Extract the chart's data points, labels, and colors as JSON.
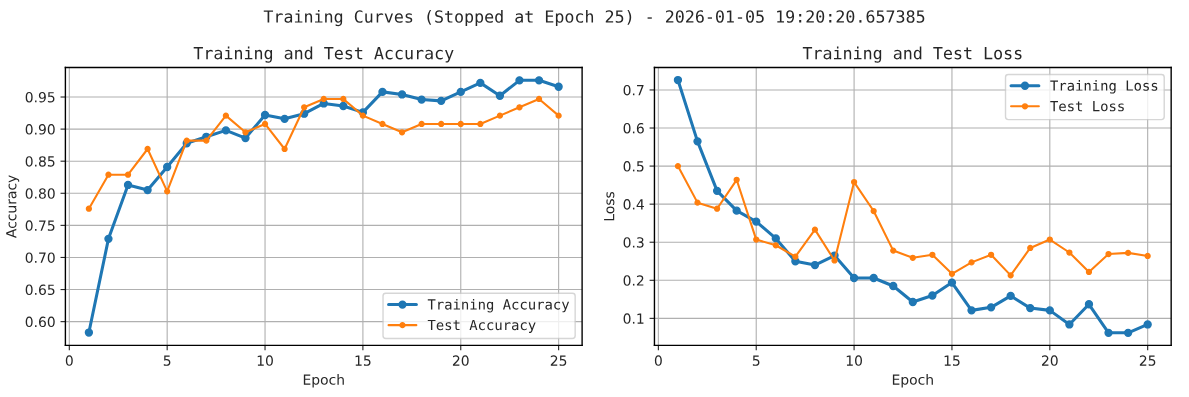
{
  "chart_data": [
    {
      "type": "line",
      "title": "Training and Test Accuracy",
      "xlabel": "Epoch",
      "ylabel": "Accuracy",
      "annotations": [
        "Training Curves (Stopped at Epoch 25) - 2026-01-05 19:20:20.657385"
      ],
      "x": [
        1,
        2,
        3,
        4,
        5,
        6,
        7,
        8,
        9,
        10,
        11,
        12,
        13,
        14,
        15,
        16,
        17,
        18,
        19,
        20,
        21,
        22,
        23,
        24,
        25
      ],
      "series": [
        {
          "name": "Training Accuracy",
          "color": "#1f77b4",
          "values": [
            0.583,
            0.729,
            0.813,
            0.805,
            0.841,
            0.878,
            0.888,
            0.898,
            0.886,
            0.922,
            0.916,
            0.924,
            0.94,
            0.936,
            0.926,
            0.958,
            0.954,
            0.946,
            0.944,
            0.958,
            0.972,
            0.952,
            0.976,
            0.976,
            0.966
          ]
        },
        {
          "name": "Test Accuracy",
          "color": "#ff7f0e",
          "values": [
            0.776,
            0.829,
            0.829,
            0.869,
            0.803,
            0.882,
            0.882,
            0.921,
            0.895,
            0.908,
            0.869,
            0.934,
            0.947,
            0.947,
            0.921,
            0.908,
            0.895,
            0.908,
            0.908,
            0.908,
            0.908,
            0.921,
            0.934,
            0.947,
            0.921
          ]
        }
      ],
      "xlim": [
        -0.2,
        26.2
      ],
      "ylim": [
        0.563,
        0.996
      ],
      "xticks": [
        0,
        5,
        10,
        15,
        20,
        25
      ],
      "yticks": [
        {
          "value": 0.6,
          "label": "0.60"
        },
        {
          "value": 0.65,
          "label": "0.65"
        },
        {
          "value": 0.7,
          "label": "0.70"
        },
        {
          "value": 0.75,
          "label": "0.75"
        },
        {
          "value": 0.8,
          "label": "0.80"
        },
        {
          "value": 0.85,
          "label": "0.85"
        },
        {
          "value": 0.9,
          "label": "0.90"
        },
        {
          "value": 0.95,
          "label": "0.95"
        }
      ],
      "grid": true,
      "legend": "bottom right",
      "marker": "circle",
      "line_style": "solid"
    },
    {
      "type": "line",
      "title": "Training and Test Loss",
      "xlabel": "Epoch",
      "ylabel": "Loss",
      "x": [
        1,
        2,
        3,
        4,
        5,
        6,
        7,
        8,
        9,
        10,
        11,
        12,
        13,
        14,
        15,
        16,
        17,
        18,
        19,
        20,
        21,
        22,
        23,
        24,
        25
      ],
      "series": [
        {
          "name": "Training Loss",
          "color": "#1f77b4",
          "values": [
            0.726,
            0.565,
            0.435,
            0.383,
            0.354,
            0.31,
            0.25,
            0.24,
            0.265,
            0.206,
            0.206,
            0.185,
            0.143,
            0.16,
            0.194,
            0.121,
            0.129,
            0.159,
            0.127,
            0.121,
            0.084,
            0.137,
            0.062,
            0.062,
            0.084
          ]
        },
        {
          "name": "Test Loss",
          "color": "#ff7f0e",
          "values": [
            0.5,
            0.404,
            0.388,
            0.464,
            0.307,
            0.292,
            0.262,
            0.333,
            0.252,
            0.458,
            0.382,
            0.278,
            0.259,
            0.267,
            0.217,
            0.247,
            0.267,
            0.213,
            0.285,
            0.307,
            0.273,
            0.222,
            0.269,
            0.272,
            0.264
          ]
        }
      ],
      "xlim": [
        -0.2,
        26.2
      ],
      "ylim": [
        0.029,
        0.759
      ],
      "xticks": [
        0,
        5,
        10,
        15,
        20,
        25
      ],
      "yticks": [
        0.1,
        0.2,
        0.3,
        0.4,
        0.5,
        0.6,
        0.7
      ],
      "grid": true,
      "legend": "top right",
      "marker": "circle",
      "line_style": "solid"
    }
  ]
}
